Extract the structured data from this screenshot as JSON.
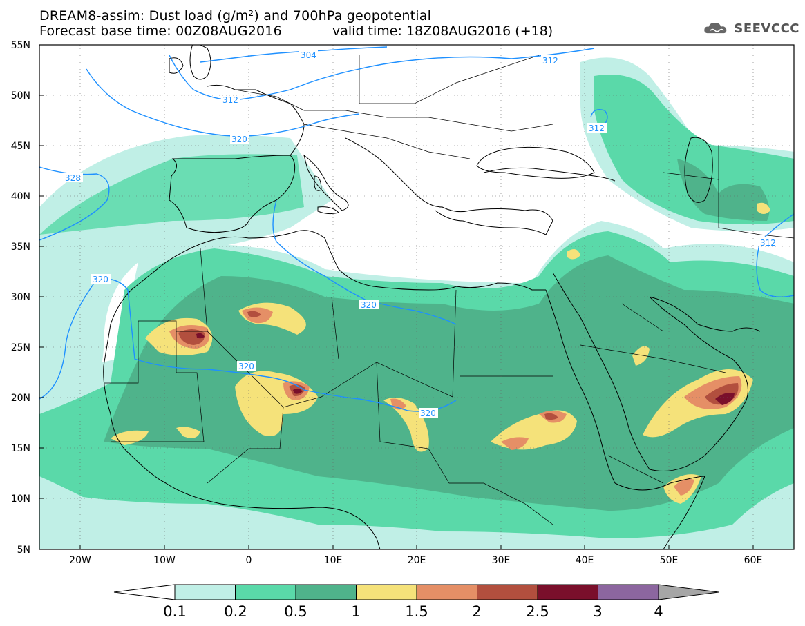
{
  "header": {
    "title_line1": "DREAM8-assim: Dust load (g/m²) and 700hPa geopotential",
    "title_line2": "Forecast base time: 00Z08AUG2016",
    "valid_time": "valid time: 18Z08AUG2016 (+18)",
    "logo_text": "SEEVCCC"
  },
  "map": {
    "lat_labels": [
      "55N",
      "50N",
      "45N",
      "40N",
      "35N",
      "30N",
      "25N",
      "20N",
      "15N",
      "10N",
      "5N"
    ],
    "lon_labels": [
      "20W",
      "10W",
      "0",
      "10E",
      "20E",
      "30E",
      "40E",
      "50E",
      "60E"
    ],
    "contour_labels": [
      "304",
      "312",
      "312",
      "312",
      "320",
      "328",
      "320",
      "320",
      "320",
      "320",
      "312"
    ],
    "contour_color": "#1e90ff"
  },
  "colorbar": {
    "ticks": [
      "0.1",
      "0.2",
      "0.5",
      "1",
      "1.5",
      "2",
      "2.5",
      "3",
      "4"
    ],
    "colors": [
      "#c0efe6",
      "#5ad9a9",
      "#4fb38b",
      "#f5e27a",
      "#e58f66",
      "#b24f3e",
      "#7a0f2b",
      "#8c669f",
      "#a6a6a6"
    ]
  }
}
